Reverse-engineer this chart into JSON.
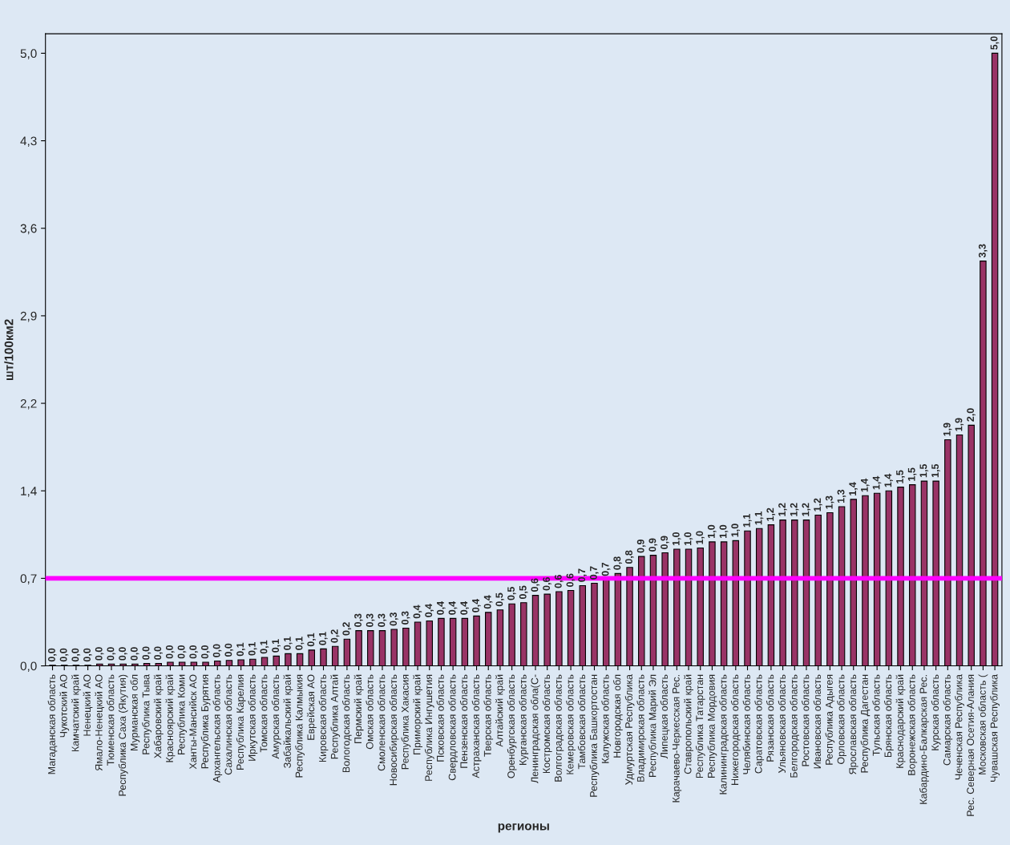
{
  "chart_data": {
    "type": "bar",
    "xlabel": "регионы",
    "ylabel": "шт/100км2",
    "color": "#993366",
    "categories": [
      "Магаданская область",
      "Чукотский АО",
      "Камчатский край",
      "Ненецкий АО",
      "Ямало-Ненецкий АО",
      "Тюменская область",
      "Республика Саха (Якутия)",
      "Мурманская обл",
      "Республика Тыва",
      "Хабаровский край",
      "Красноярский край",
      "Республика Коми",
      "Ханты-Мансийск АО",
      "Республика Бурятия",
      "Архангельская область",
      "Сахалинская область",
      "Республика Карелия",
      "Иркутская область",
      "Томская область",
      "Амурская область",
      "Забайкальский край",
      "Республика Калмыкия",
      "Еврейская АО",
      "Кировская область",
      "Республика Алтай",
      "Вологодская область",
      "Пермский край",
      "Омская область",
      "Смоленская область",
      "Новосибирская область",
      "Республика Хакасия",
      "Приморский край",
      "Республика Ингушетия",
      "Псковская область",
      "Свердловская область",
      "Пензенская область",
      "Астраханская область",
      "Тверская область",
      "Алтайский край",
      "Оренбургская область",
      "Курганская область",
      "Ленинградская обла(С-",
      "Костромская область",
      "Волгоградская область",
      "Кемеровская область",
      "Тамбовская область",
      "Республика Башкортостан",
      "Калужская область",
      "Новгородская обл",
      "Удмуртская Республика",
      "Владимирская область",
      "Республика Марий Эл",
      "Липецкая область",
      "Карачаево-Черкесская Рес.",
      "Ставропольский край",
      "Республика Татарстан",
      "Республика Мордовия",
      "Калининградская область",
      "Нижегородская область",
      "Челябинская область",
      "Саратовская область",
      "Рязанская область",
      "Ульяновская область",
      "Белгородская область",
      "Ростовская область",
      "Ивановская область",
      "Республика Адыгея",
      "Орловская область",
      "Ярославская область",
      "Республика Дагестан",
      "Тульская область",
      "Брянская область",
      "Краснодарский край",
      "Воронежская область",
      "Кабардино-Балкарская Рес.",
      "Курская область",
      "Самарская область",
      "Чеченская Республика",
      "Рес. Северная Осетия-Алания",
      "Московская область (",
      "Чувашская Республика"
    ],
    "values": [
      0.005,
      0.005,
      0.005,
      0.005,
      0.015,
      0.015,
      0.015,
      0.015,
      0.02,
      0.02,
      0.03,
      0.03,
      0.03,
      0.03,
      0.04,
      0.045,
      0.05,
      0.055,
      0.07,
      0.08,
      0.1,
      0.1,
      0.13,
      0.14,
      0.16,
      0.22,
      0.29,
      0.29,
      0.29,
      0.3,
      0.31,
      0.36,
      0.37,
      0.39,
      0.39,
      0.39,
      0.41,
      0.44,
      0.46,
      0.51,
      0.52,
      0.58,
      0.59,
      0.61,
      0.62,
      0.66,
      0.68,
      0.71,
      0.76,
      0.81,
      0.9,
      0.91,
      0.93,
      0.96,
      0.96,
      0.97,
      1.02,
      1.02,
      1.03,
      1.11,
      1.13,
      1.16,
      1.2,
      1.2,
      1.2,
      1.24,
      1.26,
      1.31,
      1.37,
      1.4,
      1.42,
      1.44,
      1.47,
      1.49,
      1.52,
      1.52,
      1.86,
      1.9,
      1.98,
      3.33,
      5.04
    ],
    "value_labels": [
      "0,0",
      "0,0",
      "0,0",
      "0,0",
      "0,0",
      "0,0",
      "0,0",
      "0,0",
      "0,0",
      "0,0",
      "0,0",
      "0,0",
      "0,0",
      "0,0",
      "0,0",
      "0,0",
      "0,1",
      "0,1",
      "0,1",
      "0,1",
      "0,1",
      "0,1",
      "0,1",
      "0,1",
      "0,2",
      "0,2",
      "0,3",
      "0,3",
      "0,3",
      "0,3",
      "0,3",
      "0,4",
      "0,4",
      "0,4",
      "0,4",
      "0,4",
      "0,4",
      "0,4",
      "0,5",
      "0,5",
      "0,5",
      "0,6",
      "0,6",
      "0,6",
      "0,6",
      "0,7",
      "0,7",
      "0,7",
      "0,8",
      "0,8",
      "0,9",
      "0,9",
      "0,9",
      "1,0",
      "1,0",
      "1,0",
      "1,0",
      "1,0",
      "1,0",
      "1,1",
      "1,1",
      "1,2",
      "1,2",
      "1,2",
      "1,2",
      "1,2",
      "1,3",
      "1,3",
      "1,4",
      "1,4",
      "1,4",
      "1,4",
      "1,5",
      "1,5",
      "1,5",
      "1,5",
      "1,9",
      "1,9",
      "2,0",
      "3,3",
      "5,0"
    ],
    "ylim": [
      0,
      5.2
    ],
    "yticks": [
      {
        "value": 0,
        "label": "0,0"
      },
      {
        "value": 0.72,
        "label": "0,7"
      },
      {
        "value": 1.44,
        "label": "1,4"
      },
      {
        "value": 2.16,
        "label": "2,2"
      },
      {
        "value": 2.88,
        "label": "2,9"
      },
      {
        "value": 3.6,
        "label": "3,6"
      },
      {
        "value": 4.32,
        "label": "4,3"
      },
      {
        "value": 5.04,
        "label": "5,0"
      }
    ],
    "ref_lines": [
      {
        "axis": "y",
        "value": 0.72,
        "color": "#ff00ff"
      }
    ],
    "grid": false,
    "legend": false
  }
}
